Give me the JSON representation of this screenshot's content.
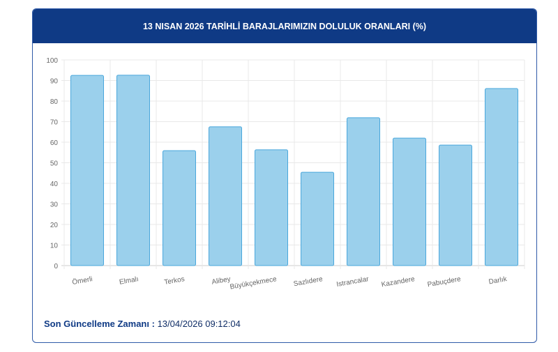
{
  "title": "13 NISAN 2026 TARİHLİ BARAJLARIMIZIN DOLULUK ORANLARI (%)",
  "footer": {
    "label": "Son Güncelleme Zamanı :",
    "value": "13/04/2026 09:12:04"
  },
  "chart_data": {
    "type": "bar",
    "title": "13 NISAN 2026 TARİHLİ BARAJLARIMIZIN DOLULUK ORANLARI (%)",
    "categories": [
      "Ömerli",
      "Elmalı",
      "Terkos",
      "Alibey",
      "Büyükçekmece",
      "Sazlıdere",
      "Istrancalar",
      "Kazandere",
      "Pabuçdere",
      "Darlık"
    ],
    "values": [
      92.5,
      92.6,
      55.9,
      67.5,
      56.3,
      45.4,
      71.9,
      62.0,
      58.6,
      86.1
    ],
    "ylim": [
      0,
      100
    ],
    "yticks": [
      0,
      10,
      20,
      30,
      40,
      50,
      60,
      70,
      80,
      90,
      100
    ],
    "xlabel": "",
    "ylabel": "",
    "grid": true,
    "colors": {
      "bar": "#9bd0ec",
      "bar_border": "#4aa7dc"
    }
  }
}
